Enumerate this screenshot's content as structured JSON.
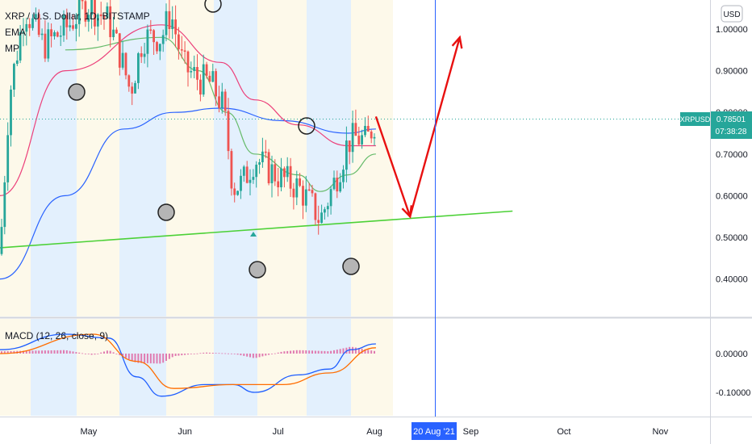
{
  "header": {
    "symbol_title": "XRP / U.S. Dollar, 1D, BITSTAMP",
    "indicator_ema": "EMA",
    "indicator_mp": "MP",
    "currency_badge": "USD"
  },
  "macd": {
    "label": "MACD (12, 26, close, 9)"
  },
  "price_badge": {
    "symbol": "XRPUSD",
    "price": "0.78501",
    "countdown": "07:38:28"
  },
  "crosshair_date": "20 Aug '21",
  "colors": {
    "bull": "#26a69a",
    "bear": "#ef5350",
    "ema_fast": "#66bb6a",
    "ema_mid": "#ec407a",
    "ema_slow": "#2962ff",
    "support": "#4cd137",
    "arrow": "#e81010",
    "band_blue": "#e3f0fd",
    "band_yellow": "#fdf9ea",
    "macd_line": "#1e5eff",
    "signal_line": "#ff6d00",
    "histogram": "#e07ab0"
  },
  "chart_data": [
    {
      "type": "line",
      "title": "XRP / U.S. Dollar, 1D, BITSTAMP",
      "ylim": [
        0.3,
        1.08
      ],
      "y_ticks": [
        {
          "value": 1.0,
          "label": "1.00000"
        },
        {
          "value": 0.9,
          "label": "0.90000"
        },
        {
          "value": 0.8,
          "label": "0.80000"
        },
        {
          "value": 0.7,
          "label": "0.70000"
        },
        {
          "value": 0.6,
          "label": "0.60000"
        },
        {
          "value": 0.5,
          "label": "0.50000"
        },
        {
          "value": 0.4,
          "label": "0.40000"
        }
      ],
      "x_ticks": [
        "May",
        "Jun",
        "Jul",
        "Aug",
        "Sep",
        "Oct",
        "Nov"
      ],
      "grid": false,
      "series": [
        {
          "kind": "price",
          "points": [
            {
              "x": "Apr 10",
              "y": 0.46
            },
            {
              "x": "Apr 13",
              "y": 0.84
            },
            {
              "x": "Apr 18",
              "y": 1.05
            },
            {
              "x": "Apr 24",
              "y": 0.96
            },
            {
              "x": "May 1",
              "y": 1.0
            },
            {
              "x": "May 8",
              "y": 1.06
            },
            {
              "x": "May 15",
              "y": 1.02
            },
            {
              "x": "May 19",
              "y": 0.93
            },
            {
              "x": "May 22",
              "y": 0.85
            },
            {
              "x": "May 26",
              "y": 0.98
            },
            {
              "x": "Jun 1",
              "y": 0.98
            },
            {
              "x": "Jun 4",
              "y": 1.04
            },
            {
              "x": "Jun 8",
              "y": 0.91
            },
            {
              "x": "Jun 13",
              "y": 0.88
            },
            {
              "x": "Jun 17",
              "y": 0.87
            },
            {
              "x": "Jun 21",
              "y": 0.81
            },
            {
              "x": "Jun 24",
              "y": 0.62
            },
            {
              "x": "Jun 27",
              "y": 0.63
            },
            {
              "x": "Jul 1",
              "y": 0.69
            },
            {
              "x": "Jul 6",
              "y": 0.66
            },
            {
              "x": "Jul 10",
              "y": 0.64
            },
            {
              "x": "Jul 15",
              "y": 0.62
            },
            {
              "x": "Jul 20",
              "y": 0.57
            },
            {
              "x": "Jul 22",
              "y": 0.54
            },
            {
              "x": "Jul 25",
              "y": 0.6
            },
            {
              "x": "Jul 28",
              "y": 0.66
            },
            {
              "x": "Jul 31",
              "y": 0.73
            },
            {
              "x": "Aug 3",
              "y": 0.74
            },
            {
              "x": "Aug 6",
              "y": 0.73
            },
            {
              "x": "Aug 9",
              "y": 0.785
            }
          ]
        },
        {
          "kind": "ema_fast",
          "points": [
            {
              "x": "May 1",
              "y": 0.95
            },
            {
              "x": "Jun 1",
              "y": 0.98
            },
            {
              "x": "Jun 13",
              "y": 0.9
            },
            {
              "x": "Jun 22",
              "y": 0.8
            },
            {
              "x": "Jul 1",
              "y": 0.7
            },
            {
              "x": "Jul 15",
              "y": 0.65
            },
            {
              "x": "Jul 22",
              "y": 0.61
            },
            {
              "x": "Jul 31",
              "y": 0.65
            },
            {
              "x": "Aug 9",
              "y": 0.7
            }
          ]
        },
        {
          "kind": "ema_mid",
          "points": [
            {
              "x": "Apr 10",
              "y": 0.6
            },
            {
              "x": "May 1",
              "y": 0.9
            },
            {
              "x": "Jun 1",
              "y": 1.01
            },
            {
              "x": "Jun 20",
              "y": 0.92
            },
            {
              "x": "Jul 1",
              "y": 0.83
            },
            {
              "x": "Jul 15",
              "y": 0.77
            },
            {
              "x": "Jul 31",
              "y": 0.72
            },
            {
              "x": "Aug 9",
              "y": 0.72
            }
          ]
        },
        {
          "kind": "ema_slow",
          "points": [
            {
              "x": "Apr 10",
              "y": 0.4
            },
            {
              "x": "May 1",
              "y": 0.6
            },
            {
              "x": "May 20",
              "y": 0.76
            },
            {
              "x": "Jun 5",
              "y": 0.8
            },
            {
              "x": "Jun 20",
              "y": 0.81
            },
            {
              "x": "Jul 10",
              "y": 0.78
            },
            {
              "x": "Jul 31",
              "y": 0.75
            },
            {
              "x": "Aug 9",
              "y": 0.76
            }
          ]
        },
        {
          "kind": "support_line",
          "points": [
            {
              "x": "Apr 10",
              "y": 0.475
            },
            {
              "x": "Sep 22",
              "y": 0.563
            }
          ]
        },
        {
          "kind": "projection_arrow",
          "points": [
            {
              "x": "Aug 9",
              "y": 0.79
            },
            {
              "x": "Aug 20",
              "y": 0.55
            },
            {
              "x": "Sep 5",
              "y": 0.98
            }
          ]
        }
      ]
    },
    {
      "type": "line",
      "title": "MACD (12, 26, close, 9)",
      "ylim": [
        -0.16,
        0.08
      ],
      "y_ticks": [
        {
          "value": 0.0,
          "label": "0.00000"
        },
        {
          "value": -0.1,
          "label": "-0.10000"
        }
      ],
      "series": [
        {
          "kind": "macd",
          "points": [
            {
              "x": "Apr 10",
              "y": 0.01
            },
            {
              "x": "May 1",
              "y": 0.05
            },
            {
              "x": "May 15",
              "y": 0.04
            },
            {
              "x": "May 24",
              "y": -0.06
            },
            {
              "x": "Jun 1",
              "y": -0.11
            },
            {
              "x": "Jun 15",
              "y": -0.08
            },
            {
              "x": "Jun 24",
              "y": -0.08
            },
            {
              "x": "Jul 1",
              "y": -0.1
            },
            {
              "x": "Jul 15",
              "y": -0.055
            },
            {
              "x": "Jul 25",
              "y": -0.04
            },
            {
              "x": "Aug 1",
              "y": 0.01
            },
            {
              "x": "Aug 9",
              "y": 0.025
            }
          ]
        },
        {
          "kind": "signal",
          "points": [
            {
              "x": "Apr 10",
              "y": 0.0
            },
            {
              "x": "May 10",
              "y": 0.05
            },
            {
              "x": "May 24",
              "y": -0.02
            },
            {
              "x": "Jun 5",
              "y": -0.09
            },
            {
              "x": "Jun 24",
              "y": -0.08
            },
            {
              "x": "Jul 10",
              "y": -0.08
            },
            {
              "x": "Jul 25",
              "y": -0.05
            },
            {
              "x": "Aug 9",
              "y": 0.015
            }
          ]
        }
      ]
    }
  ]
}
